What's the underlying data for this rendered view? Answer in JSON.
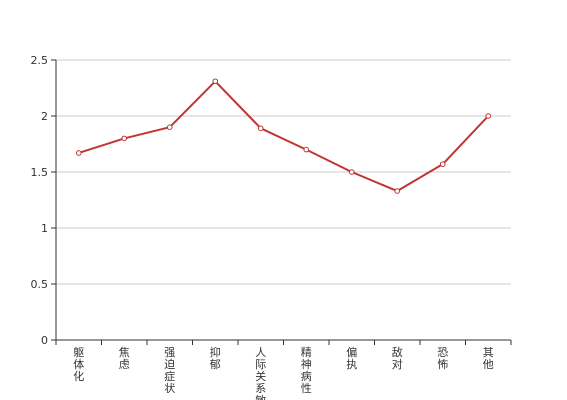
{
  "chart_data": {
    "type": "line",
    "title": "",
    "xlabel": "",
    "ylabel": "",
    "categories": [
      "躯体化",
      "焦虑",
      "强迫症状",
      "抑郁",
      "人际关系敏感",
      "精神病性",
      "偏执",
      "敌对",
      "恐怖",
      "其他"
    ],
    "series": [
      {
        "values": [
          1.67,
          1.8,
          1.9,
          2.31,
          1.89,
          1.7,
          1.5,
          1.33,
          1.57,
          2.0
        ]
      }
    ],
    "yticks": [
      "0",
      "0.5",
      "1",
      "1.5",
      "2",
      "2.5"
    ],
    "ylim": [
      0,
      2.5
    ],
    "grid": true,
    "legend": "none",
    "colors": {
      "line": "#c23531",
      "grid": "#cccccc",
      "axis": "#333333"
    }
  }
}
